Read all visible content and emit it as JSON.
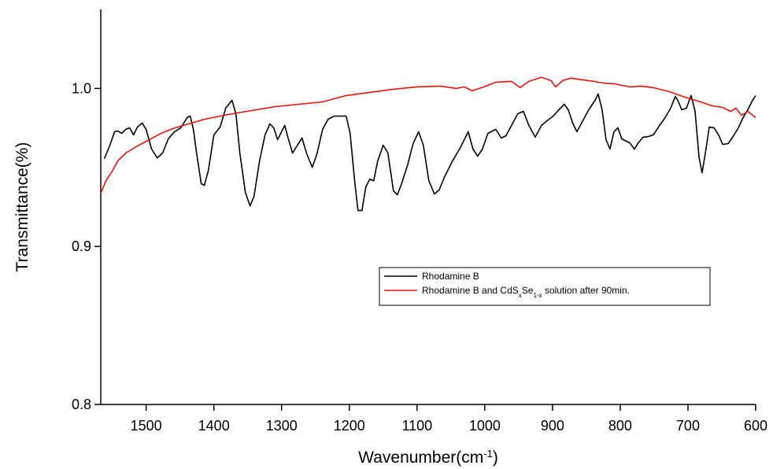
{
  "chart_data": {
    "type": "line",
    "ylabel": "Transmittance(%)",
    "xlabel": [
      {
        "text": "Wavenumber(cm"
      },
      {
        "text": "-1",
        "sup": true
      },
      {
        "text": ")"
      }
    ],
    "xlim": [
      1567,
      600
    ],
    "ylim": [
      0.8,
      1.05
    ],
    "xticks": [
      1500,
      1400,
      1300,
      1200,
      1100,
      1000,
      900,
      800,
      700,
      600
    ],
    "yticks": [
      0.8,
      0.9,
      {
        "value": 1,
        "label": "1.0"
      }
    ],
    "legend": "lower right",
    "series": [
      {
        "name": "Rhodamine B",
        "color": "#000000",
        "x": [
          1561.6,
          1553.5,
          1546.5,
          1541.9,
          1536.0,
          1530.2,
          1524.4,
          1518.6,
          1512.8,
          1505.8,
          1500,
          1491.9,
          1483.7,
          1475.6,
          1467.4,
          1458.1,
          1448.8,
          1439.5,
          1434.9,
          1430.2,
          1425.6,
          1418.6,
          1414.0,
          1408.1,
          1400,
          1390.7,
          1382.6,
          1373.3,
          1367.4,
          1361.6,
          1353.5,
          1346.5,
          1340.7,
          1332.6,
          1324.4,
          1317.4,
          1311.6,
          1305.8,
          1300,
          1295.3,
          1290.7,
          1283.7,
          1276.7,
          1269.8,
          1262.8,
          1254.7,
          1247.7,
          1239.5,
          1231.4,
          1222.1,
          1214.0,
          1204.7,
          1198.8,
          1191.9,
          1187.2,
          1181.4,
          1175.6,
          1169.8,
          1164.0,
          1158.1,
          1150.0,
          1143.0,
          1134.9,
          1129.1,
          1123.3,
          1114.0,
          1105.8,
          1097.7,
          1090.7,
          1082.6,
          1074.4,
          1067.4,
          1059.3,
          1047.7,
          1036.0,
          1024.4,
          1017.4,
          1010.5,
          1003.5,
          995.3,
          983.7,
          975.6,
          968.6,
          960.5,
          951.2,
          943.0,
          934.9,
          925.6,
          916.3,
          907.0,
          898.8,
          890.7,
          882.6,
          876.7,
          869.8,
          864.0,
          855.8,
          846.5,
          837.2,
          832.6,
          826.7,
          820.9,
          815.1,
          809.3,
          803.5,
          797.7,
          790.7,
          786.0,
          779.1,
          773.3,
          766.3,
          758.1,
          751.2,
          741.9,
          733.7,
          725.6,
          718.6,
          713.9,
          709.3,
          702.3,
          695.3,
          689.5,
          683.7,
          679.1,
          673.3,
          668.6,
          661.6,
          654.7,
          648.8,
          640.7,
          632.6,
          625.6,
          618.6,
          611.6,
          604.7,
          600
        ],
        "values": [
          0.9556,
          0.9641,
          0.9726,
          0.9731,
          0.9716,
          0.9741,
          0.9751,
          0.9706,
          0.9756,
          0.9781,
          0.9741,
          0.9616,
          0.9561,
          0.9591,
          0.9681,
          0.9726,
          0.9751,
          0.9815,
          0.9825,
          0.9741,
          0.9591,
          0.9397,
          0.9387,
          0.9481,
          0.9706,
          0.9756,
          0.9875,
          0.9925,
          0.984,
          0.9591,
          0.9342,
          0.9257,
          0.9317,
          0.9541,
          0.9706,
          0.9776,
          0.9751,
          0.9676,
          0.9726,
          0.9766,
          0.9691,
          0.9591,
          0.9641,
          0.9686,
          0.9586,
          0.9501,
          0.9586,
          0.9741,
          0.9805,
          0.9825,
          0.9825,
          0.9825,
          0.9716,
          0.9406,
          0.9227,
          0.9227,
          0.9377,
          0.9426,
          0.9416,
          0.9541,
          0.9641,
          0.9591,
          0.9352,
          0.9327,
          0.9392,
          0.9516,
          0.9651,
          0.9726,
          0.9641,
          0.9416,
          0.9332,
          0.9357,
          0.9441,
          0.9541,
          0.9626,
          0.9726,
          0.9616,
          0.9571,
          0.9616,
          0.9716,
          0.9741,
          0.9686,
          0.9701,
          0.9766,
          0.984,
          0.9855,
          0.9766,
          0.9691,
          0.9766,
          0.98,
          0.9825,
          0.9865,
          0.99,
          0.9865,
          0.9776,
          0.9726,
          0.9791,
          0.9865,
          0.9925,
          0.9965,
          0.9865,
          0.9676,
          0.9616,
          0.9726,
          0.9751,
          0.9681,
          0.9666,
          0.9656,
          0.9616,
          0.9656,
          0.9691,
          0.9696,
          0.9706,
          0.9766,
          0.9815,
          0.9875,
          0.995,
          0.9915,
          0.9865,
          0.9875,
          0.9955,
          0.9855,
          0.9566,
          0.9466,
          0.9616,
          0.9756,
          0.9751,
          0.9706,
          0.9646,
          0.9651,
          0.9701,
          0.9751,
          0.9815,
          0.9865,
          0.9925,
          0.9955
        ]
      },
      {
        "name": [
          {
            "text": "Rhodamine B and CdS"
          },
          {
            "text": "x",
            "sub": true
          },
          {
            "text": "Se"
          },
          {
            "text": "1-x",
            "sub": true
          },
          {
            "text": " solution after 90min."
          }
        ],
        "color": "#e8140c",
        "x": [
          1567.4,
          1559.3,
          1550.0,
          1541.9,
          1530.2,
          1512.8,
          1495.3,
          1477.9,
          1460.5,
          1437.2,
          1414.0,
          1379.1,
          1344.2,
          1309.3,
          1274.4,
          1239.5,
          1204.7,
          1169.8,
          1134.9,
          1100.0,
          1065.1,
          1041.9,
          1030.2,
          1018.6,
          1001.2,
          983.7,
          960.5,
          947.7,
          934.9,
          916.3,
          902.3,
          895.3,
          884.9,
          873.3,
          855.8,
          838.4,
          826.7,
          809.3,
          786.0,
          768.6,
          751.2,
          727.9,
          704.7,
          681.4,
          664.0,
          648.8,
          637.2,
          629.1,
          620.9,
          611.6,
          600.0
        ],
        "values": [
          0.9332,
          0.9416,
          0.9476,
          0.9541,
          0.9591,
          0.9636,
          0.9676,
          0.9716,
          0.9746,
          0.9776,
          0.9805,
          0.9835,
          0.986,
          0.9885,
          0.99,
          0.9915,
          0.9955,
          0.9975,
          0.9995,
          1.001,
          1.0015,
          1.0,
          1.001,
          0.9985,
          1.001,
          1.004,
          1.0045,
          1.0005,
          1.0045,
          1.007,
          1.005,
          1.001,
          1.005,
          1.0065,
          1.0055,
          1.0045,
          1.0035,
          1.003,
          1.001,
          1.0015,
          1.0005,
          0.998,
          0.9945,
          0.9915,
          0.989,
          0.988,
          0.9855,
          0.9875,
          0.983,
          0.9855,
          0.9815
        ]
      }
    ]
  }
}
